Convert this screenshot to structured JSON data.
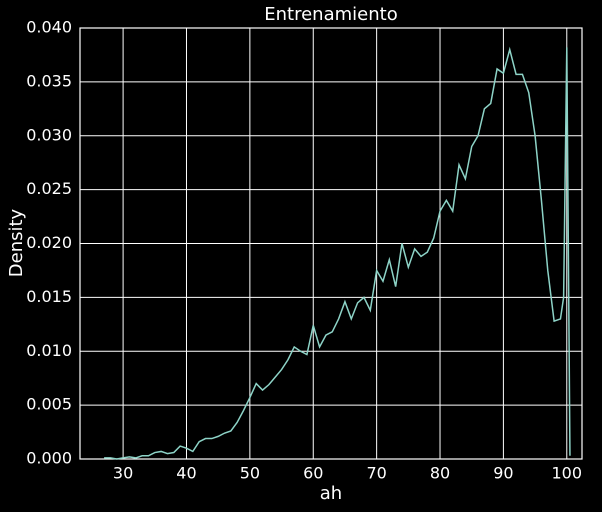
{
  "chart_data": {
    "type": "line",
    "title": "Entrenamiento",
    "x_label": "ah",
    "y_label": "Density",
    "x": [
      27,
      28,
      29,
      30,
      31,
      32,
      33,
      34,
      35,
      36,
      37,
      38,
      39,
      40,
      41,
      42,
      43,
      44,
      45,
      46,
      47,
      48,
      49,
      50,
      51,
      52,
      53,
      54,
      55,
      56,
      57,
      58,
      59,
      60,
      61,
      62,
      63,
      64,
      65,
      66,
      67,
      68,
      69,
      70,
      71,
      72,
      73,
      74,
      75,
      76,
      77,
      78,
      79,
      80,
      81,
      82,
      83,
      84,
      85,
      86,
      87,
      88,
      89,
      90,
      91,
      92,
      93,
      94,
      95,
      96,
      97,
      98,
      99,
      99.5,
      100,
      100.5
    ],
    "series": [
      {
        "name": "ah",
        "color": "#8dd3c7",
        "values": [
          0.0001,
          0.0001,
          0,
          0.0001,
          0.0002,
          0.0001,
          0.0003,
          0.0003,
          0.0006,
          0.0007,
          0.0005,
          0.0006,
          0.0012,
          0.001,
          0.0007,
          0.0016,
          0.0019,
          0.0019,
          0.0021,
          0.0024,
          0.0026,
          0.0034,
          0.0045,
          0.0057,
          0.007,
          0.0064,
          0.0069,
          0.0076,
          0.0083,
          0.0092,
          0.0104,
          0.01,
          0.0097,
          0.0124,
          0.0104,
          0.0115,
          0.0118,
          0.013,
          0.0146,
          0.013,
          0.0145,
          0.015,
          0.0138,
          0.0175,
          0.0165,
          0.0185,
          0.016,
          0.02,
          0.0178,
          0.0195,
          0.0188,
          0.0192,
          0.0205,
          0.023,
          0.024,
          0.023,
          0.0273,
          0.026,
          0.029,
          0.03,
          0.0325,
          0.033,
          0.0362,
          0.0358,
          0.038,
          0.0357,
          0.0357,
          0.034,
          0.03,
          0.024,
          0.0175,
          0.0128,
          0.013,
          0.015,
          0.0382,
          0.0003
        ]
      }
    ],
    "xlim": [
      23.2,
      102.4
    ],
    "xticks": [
      30,
      40,
      50,
      60,
      70,
      80,
      90,
      100
    ],
    "ylim": [
      0,
      0.04
    ],
    "yticks": [
      {
        "value": 0,
        "label": "0.000"
      },
      {
        "value": 0.005,
        "label": "0.005"
      },
      {
        "value": 0.01,
        "label": "0.010"
      },
      {
        "value": 0.015,
        "label": "0.015"
      },
      {
        "value": 0.02,
        "label": "0.020"
      },
      {
        "value": 0.025,
        "label": "0.025"
      },
      {
        "value": 0.03,
        "label": "0.030"
      },
      {
        "value": 0.035,
        "label": "0.035"
      },
      {
        "value": 0.04,
        "label": "0.040"
      }
    ],
    "grid": true
  }
}
